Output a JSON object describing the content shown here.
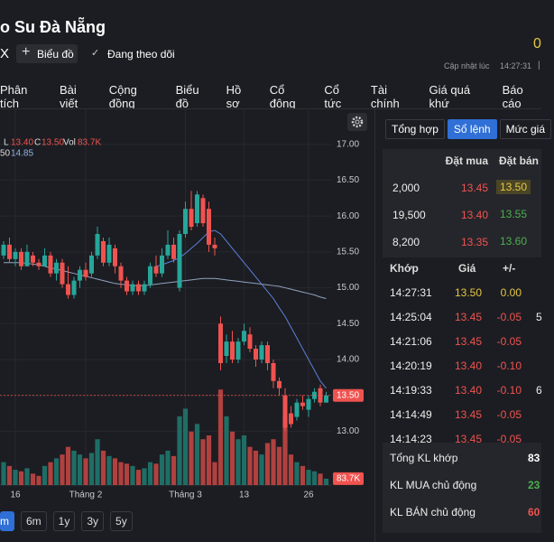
{
  "header": {
    "title": "o Su Đà Nẵng",
    "ticker": "X",
    "add_chart": "Biểu đồ",
    "follow": "Đang theo dõi",
    "price_cropped": "0",
    "updated_label": "Cập nhật lúc",
    "updated_time": "14:27:31"
  },
  "nav": [
    "Phân tích",
    "Bài viết",
    "Cộng đồng",
    "Biểu đồ",
    "Hồ sơ",
    "Cổ đông",
    "Cổ tức",
    "Tài chính",
    "Giá quá khứ",
    "Báo cáo"
  ],
  "chart_data": {
    "type": "candlestick",
    "legend": {
      "low_label": "L",
      "low_value": "13.40",
      "close_label": "C",
      "close_value": "13.50",
      "vol_label": "Vol",
      "vol_value": "83.7K"
    },
    "categories": [
      null,
      null,
      "16",
      null,
      null,
      null,
      null,
      null,
      null,
      null,
      null,
      null,
      null,
      null,
      "Tháng 2",
      null,
      null,
      null,
      null,
      null,
      null,
      null,
      null,
      null,
      null,
      null,
      null,
      null,
      null,
      null,
      null,
      "Tháng 3",
      null,
      null,
      null,
      null,
      null,
      null,
      null,
      null,
      null,
      "13",
      null,
      null,
      null,
      null,
      null,
      null,
      null,
      null,
      null,
      null,
      "26",
      null,
      null,
      null
    ],
    "open": [
      15.45,
      15.6,
      15.4,
      15.5,
      15.3,
      15.45,
      15.35,
      15.3,
      15.45,
      15.2,
      15.35,
      15.05,
      14.9,
      15.1,
      15.25,
      15.2,
      15.45,
      15.65,
      15.35,
      15.55,
      15.3,
      15.1,
      14.95,
      15.05,
      14.95,
      15.05,
      15.3,
      15.2,
      15.45,
      15.6,
      15.0,
      15.75,
      16.1,
      15.9,
      16.25,
      16.1,
      15.6,
      14.5,
      14.05,
      14.25,
      14.0,
      14.25,
      14.35,
      14.15,
      14.0,
      14.2,
      13.95,
      13.7,
      13.5,
      13.25,
      13.2,
      13.4,
      13.3,
      13.45,
      13.6,
      13.4
    ],
    "high": [
      15.65,
      15.7,
      15.55,
      15.55,
      15.6,
      15.5,
      15.4,
      15.55,
      15.5,
      15.4,
      15.4,
      15.3,
      15.15,
      15.3,
      15.35,
      15.5,
      15.85,
      15.7,
      15.7,
      15.6,
      15.35,
      15.15,
      15.1,
      15.1,
      15.1,
      15.35,
      15.45,
      15.55,
      15.8,
      15.7,
      15.8,
      16.2,
      16.35,
      16.35,
      16.3,
      16.2,
      15.7,
      14.6,
      14.35,
      14.4,
      14.3,
      14.5,
      14.45,
      14.2,
      14.25,
      14.25,
      14.0,
      13.75,
      13.6,
      13.35,
      13.45,
      13.5,
      13.5,
      13.6,
      13.65,
      13.55
    ],
    "low": [
      15.4,
      15.35,
      15.3,
      15.25,
      15.3,
      15.3,
      15.25,
      15.3,
      15.15,
      15.1,
      15.0,
      14.85,
      14.85,
      15.0,
      15.1,
      15.15,
      15.4,
      15.3,
      15.3,
      15.2,
      15.0,
      14.9,
      14.9,
      14.9,
      14.9,
      15.0,
      15.15,
      15.15,
      15.4,
      15.35,
      14.95,
      15.7,
      15.8,
      15.85,
      15.85,
      15.5,
      15.45,
      13.85,
      13.95,
      13.95,
      13.95,
      14.2,
      14.1,
      13.9,
      13.95,
      13.85,
      13.6,
      13.5,
      13.0,
      13.05,
      13.15,
      13.3,
      13.2,
      13.4,
      13.35,
      13.4
    ],
    "close": [
      15.6,
      15.4,
      15.5,
      15.3,
      15.5,
      15.35,
      15.3,
      15.45,
      15.2,
      15.35,
      15.05,
      14.9,
      15.1,
      15.25,
      15.15,
      15.45,
      15.75,
      15.35,
      15.6,
      15.3,
      15.1,
      14.95,
      15.05,
      14.95,
      15.05,
      15.3,
      15.2,
      15.45,
      15.6,
      15.4,
      15.75,
      16.1,
      15.85,
      16.3,
      15.9,
      15.6,
      15.55,
      13.95,
      14.25,
      14.0,
      14.25,
      14.4,
      14.15,
      14.0,
      14.2,
      13.95,
      13.7,
      13.6,
      13.05,
      13.1,
      13.4,
      13.35,
      13.45,
      13.55,
      13.4,
      13.5
    ],
    "volume": [
      300,
      250,
      200,
      180,
      220,
      150,
      120,
      250,
      300,
      350,
      400,
      500,
      450,
      400,
      350,
      420,
      600,
      450,
      380,
      350,
      300,
      280,
      250,
      200,
      220,
      300,
      280,
      400,
      450,
      380,
      900,
      1000,
      700,
      800,
      600,
      650,
      300,
      1250,
      900,
      700,
      600,
      650,
      500,
      450,
      400,
      550,
      600,
      500,
      900,
      400,
      300,
      250,
      200,
      180,
      150,
      83.7
    ],
    "lines": [
      {
        "name": "50",
        "value_label": "14.85",
        "color": "#8fa3bf",
        "values": [
          15.35,
          15.35,
          15.35,
          15.35,
          15.34,
          15.33,
          15.32,
          15.3,
          15.28,
          15.26,
          15.24,
          15.22,
          15.2,
          15.18,
          15.16,
          15.14,
          15.12,
          15.1,
          15.08,
          15.06,
          15.05,
          15.04,
          15.03,
          15.03,
          15.03,
          15.04,
          15.05,
          15.06,
          15.07,
          15.08,
          15.09,
          15.1,
          15.11,
          15.12,
          15.13,
          15.13,
          15.13,
          15.12,
          15.11,
          15.1,
          15.09,
          15.08,
          15.07,
          15.06,
          15.05,
          15.04,
          15.03,
          15.02,
          15.0,
          14.98,
          14.96,
          14.94,
          14.92,
          14.9,
          14.87,
          14.85
        ]
      },
      {
        "color": "#5b7fd9",
        "values": [
          null,
          null,
          null,
          null,
          null,
          null,
          null,
          null,
          null,
          null,
          null,
          null,
          null,
          null,
          null,
          null,
          null,
          null,
          null,
          null,
          null,
          null,
          null,
          null,
          null,
          null,
          15.3,
          15.32,
          15.35,
          15.38,
          15.42,
          15.48,
          15.55,
          15.62,
          15.7,
          15.78,
          15.8,
          15.75,
          15.65,
          15.55,
          15.45,
          15.35,
          15.25,
          15.15,
          15.05,
          14.95,
          14.85,
          14.72,
          14.6,
          14.45,
          14.3,
          14.15,
          14.0,
          13.85,
          13.7,
          13.6
        ]
      }
    ],
    "up_color": "#26a69a",
    "down_color": "#ef5350",
    "vol_up_color": "#1f6e66",
    "vol_down_color": "#b0413f",
    "ylim": [
      12.25,
      17.5
    ],
    "yticks": [
      {
        "value": 13,
        "label": "13.00"
      },
      {
        "value": 13.5,
        "label": "13.50"
      },
      {
        "value": 14,
        "label": "14.00"
      },
      {
        "value": 14.5,
        "label": "14.50"
      },
      {
        "value": 15,
        "label": "15.00"
      },
      {
        "value": 15.5,
        "label": "15.50"
      },
      {
        "value": 16,
        "label": "16.00"
      },
      {
        "value": 16.5,
        "label": "16.50"
      },
      {
        "value": 17,
        "label": "17.00"
      }
    ],
    "vol_ylim": [
      0,
      1300
    ],
    "last_price": 13.5,
    "last_price_tag": "13.50",
    "last_volume_tag": "83.7K",
    "grid": true
  },
  "range_buttons": [
    "m",
    "6m",
    "1y",
    "3y",
    "5y"
  ],
  "side": {
    "tabs": [
      "Tổng hợp",
      "Sổ lệnh",
      "Mức giá"
    ],
    "order_book": {
      "headers": [
        "Đặt mua",
        "Đặt bán"
      ],
      "rows": [
        [
          "2,000",
          "13.45",
          "13.50"
        ],
        [
          "19,500",
          "13.40",
          "13.55"
        ],
        [
          "8,200",
          "13.35",
          "13.60"
        ]
      ],
      "buy_color": "#ef5350",
      "sell_colors": [
        "#e5c842",
        "#4caf50",
        "#4caf50"
      ]
    },
    "trades": {
      "headers": [
        "Khớp",
        "Giá",
        "+/-"
      ],
      "rows": [
        [
          "14:27:31",
          "13.50",
          "0.00"
        ],
        [
          "14:25:04",
          "13.45",
          "-0.05",
          "5"
        ],
        [
          "14:21:06",
          "13.45",
          "-0.05"
        ],
        [
          "14:20:19",
          "13.40",
          "-0.10"
        ],
        [
          "14:19:33",
          "13.40",
          "-0.10",
          "6"
        ],
        [
          "14:14:49",
          "13.45",
          "-0.05"
        ],
        [
          "14:14:23",
          "13.45",
          "-0.05"
        ]
      ],
      "row_colors": [
        "#e5c842",
        "#ef5350",
        "#ef5350",
        "#ef5350",
        "#ef5350",
        "#ef5350",
        "#ef5350"
      ]
    },
    "summary": {
      "rows": [
        [
          "Tổng KL khớp",
          "83"
        ],
        [
          "KL MUA chủ động",
          "23"
        ],
        [
          "KL BÁN chủ động",
          "60"
        ]
      ],
      "value_colors": [
        "#ffffff",
        "#4caf50",
        "#ef5350"
      ]
    }
  }
}
